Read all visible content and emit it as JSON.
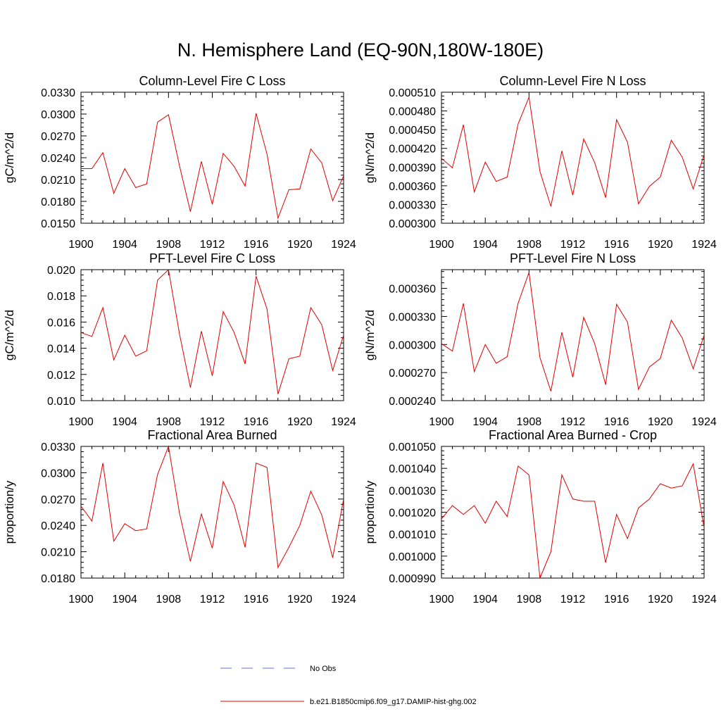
{
  "figure": {
    "title": "N. Hemisphere Land (EQ-90N,180W-180E)"
  },
  "legend": [
    {
      "label": "No Obs",
      "color": "#6670c8",
      "style": "dashed"
    },
    {
      "label": "b.e21.B1850cmip6.f09_g17.DAMIP-hist-ghg.002",
      "color": "#e00000",
      "style": "solid"
    }
  ],
  "chart_data": [
    {
      "type": "line",
      "title": "Column-Level Fire C Loss",
      "ylabel": "gC/m^2/d",
      "xlim": [
        1900,
        1924
      ],
      "ylim": [
        0.015,
        0.033
      ],
      "xticks": [
        1900,
        1904,
        1908,
        1912,
        1916,
        1920,
        1924
      ],
      "xtick_labels": [
        "1900",
        "1904",
        "1908",
        "1912",
        "1916",
        "1920",
        "1924"
      ],
      "yticks": [
        0.015,
        0.018,
        0.021,
        0.024,
        0.027,
        0.03,
        0.033
      ],
      "ytick_labels": [
        "0.0150",
        "0.0180",
        "0.0210",
        "0.0240",
        "0.0270",
        "0.0300",
        "0.0330"
      ],
      "x": [
        1900,
        1901,
        1902,
        1903,
        1904,
        1905,
        1906,
        1907,
        1908,
        1909,
        1910,
        1911,
        1912,
        1913,
        1914,
        1915,
        1916,
        1917,
        1918,
        1919,
        1920,
        1921,
        1922,
        1923,
        1924
      ],
      "series": [
        {
          "name": "b.e21.B1850cmip6.f09_g17.DAMIP-hist-ghg.002",
          "color": "#e00000",
          "values": [
            0.0225,
            0.0225,
            0.0247,
            0.0191,
            0.0225,
            0.0199,
            0.0204,
            0.0289,
            0.0299,
            0.0229,
            0.0166,
            0.0235,
            0.0176,
            0.0246,
            0.0228,
            0.0201,
            0.0301,
            0.0245,
            0.0157,
            0.0196,
            0.0197,
            0.0252,
            0.0233,
            0.0181,
            0.0215
          ]
        }
      ]
    },
    {
      "type": "line",
      "title": "Column-Level Fire N Loss",
      "ylabel": "gN/m^2/d",
      "xlim": [
        1900,
        1924
      ],
      "ylim": [
        0.0003,
        0.00051
      ],
      "xticks": [
        1900,
        1904,
        1908,
        1912,
        1916,
        1920,
        1924
      ],
      "xtick_labels": [
        "1900",
        "1904",
        "1908",
        "1912",
        "1916",
        "1920",
        "1924"
      ],
      "yticks": [
        0.0003,
        0.00033,
        0.00036,
        0.00039,
        0.00042,
        0.00045,
        0.00048,
        0.00051
      ],
      "ytick_labels": [
        "0.000300",
        "0.000330",
        "0.000360",
        "0.000390",
        "0.000420",
        "0.000450",
        "0.000480",
        "0.000510"
      ],
      "x": [
        1900,
        1901,
        1902,
        1903,
        1904,
        1905,
        1906,
        1907,
        1908,
        1909,
        1910,
        1911,
        1912,
        1913,
        1914,
        1915,
        1916,
        1917,
        1918,
        1919,
        1920,
        1921,
        1922,
        1923,
        1924
      ],
      "series": [
        {
          "name": "b.e21.B1850cmip6.f09_g17.DAMIP-hist-ghg.002",
          "color": "#e00000",
          "values": [
            0.000404,
            0.000389,
            0.000458,
            0.00035,
            0.000398,
            0.000367,
            0.000374,
            0.000459,
            0.000502,
            0.000383,
            0.000327,
            0.000416,
            0.000345,
            0.000435,
            0.000397,
            0.000341,
            0.000466,
            0.00043,
            0.000331,
            0.000359,
            0.000374,
            0.000433,
            0.000406,
            0.000355,
            0.00041
          ]
        }
      ]
    },
    {
      "type": "line",
      "title": "PFT-Level Fire C Loss",
      "ylabel": "gC/m^2/d",
      "xlim": [
        1900,
        1924
      ],
      "ylim": [
        0.01,
        0.02
      ],
      "xticks": [
        1900,
        1904,
        1908,
        1912,
        1916,
        1920,
        1924
      ],
      "xtick_labels": [
        "1900",
        "1904",
        "1908",
        "1912",
        "1916",
        "1920",
        "1924"
      ],
      "yticks": [
        0.01,
        0.012,
        0.014,
        0.016,
        0.018,
        0.02
      ],
      "ytick_labels": [
        "0.010",
        "0.012",
        "0.014",
        "0.016",
        "0.018",
        "0.020"
      ],
      "x": [
        1900,
        1901,
        1902,
        1903,
        1904,
        1905,
        1906,
        1907,
        1908,
        1909,
        1910,
        1911,
        1912,
        1913,
        1914,
        1915,
        1916,
        1917,
        1918,
        1919,
        1920,
        1921,
        1922,
        1923,
        1924
      ],
      "series": [
        {
          "name": "b.e21.B1850cmip6.f09_g17.DAMIP-hist-ghg.002",
          "color": "#e00000",
          "values": [
            0.0152,
            0.0149,
            0.0171,
            0.0131,
            0.015,
            0.0134,
            0.0138,
            0.0192,
            0.02,
            0.0151,
            0.011,
            0.0153,
            0.0119,
            0.0168,
            0.0152,
            0.0128,
            0.0195,
            0.017,
            0.0105,
            0.0132,
            0.0134,
            0.0171,
            0.0158,
            0.0123,
            0.015
          ]
        }
      ]
    },
    {
      "type": "line",
      "title": "PFT-Level Fire N Loss",
      "ylabel": "gN/m^2/d",
      "xlim": [
        1900,
        1924
      ],
      "ylim": [
        0.00024,
        0.00038
      ],
      "xticks": [
        1900,
        1904,
        1908,
        1912,
        1916,
        1920,
        1924
      ],
      "xtick_labels": [
        "1900",
        "1904",
        "1908",
        "1912",
        "1916",
        "1920",
        "1924"
      ],
      "yticks": [
        0.00024,
        0.00027,
        0.0003,
        0.00033,
        0.00036
      ],
      "ytick_labels": [
        "0.000240",
        "0.000270",
        "0.000300",
        "0.000330",
        "0.000360"
      ],
      "x": [
        1900,
        1901,
        1902,
        1903,
        1904,
        1905,
        1906,
        1907,
        1908,
        1909,
        1910,
        1911,
        1912,
        1913,
        1914,
        1915,
        1916,
        1917,
        1918,
        1919,
        1920,
        1921,
        1922,
        1923,
        1924
      ],
      "series": [
        {
          "name": "b.e21.B1850cmip6.f09_g17.DAMIP-hist-ghg.002",
          "color": "#e00000",
          "values": [
            0.000301,
            0.000293,
            0.000344,
            0.000271,
            0.0003,
            0.00028,
            0.000287,
            0.000344,
            0.000377,
            0.000286,
            0.00025,
            0.000313,
            0.000265,
            0.000329,
            0.000301,
            0.000257,
            0.000343,
            0.000324,
            0.000252,
            0.000276,
            0.000285,
            0.000326,
            0.000307,
            0.000274,
            0.00031
          ]
        }
      ]
    },
    {
      "type": "line",
      "title": "Fractional Area Burned",
      "ylabel": "proportion/y",
      "xlim": [
        1900,
        1924
      ],
      "ylim": [
        0.018,
        0.033
      ],
      "xticks": [
        1900,
        1904,
        1908,
        1912,
        1916,
        1920,
        1924
      ],
      "xtick_labels": [
        "1900",
        "1904",
        "1908",
        "1912",
        "1916",
        "1920",
        "1924"
      ],
      "yticks": [
        0.018,
        0.021,
        0.024,
        0.027,
        0.03,
        0.033
      ],
      "ytick_labels": [
        "0.0180",
        "0.0210",
        "0.0240",
        "0.0270",
        "0.0300",
        "0.0330"
      ],
      "x": [
        1900,
        1901,
        1902,
        1903,
        1904,
        1905,
        1906,
        1907,
        1908,
        1909,
        1910,
        1911,
        1912,
        1913,
        1914,
        1915,
        1916,
        1917,
        1918,
        1919,
        1920,
        1921,
        1922,
        1923,
        1924
      ],
      "series": [
        {
          "name": "b.e21.B1850cmip6.f09_g17.DAMIP-hist-ghg.002",
          "color": "#e00000",
          "values": [
            0.0262,
            0.0245,
            0.0311,
            0.0222,
            0.0242,
            0.0234,
            0.0236,
            0.0298,
            0.033,
            0.0254,
            0.0199,
            0.0253,
            0.0214,
            0.029,
            0.0263,
            0.0215,
            0.0311,
            0.0306,
            0.0192,
            0.0215,
            0.024,
            0.0279,
            0.0252,
            0.0203,
            0.027
          ]
        }
      ]
    },
    {
      "type": "line",
      "title": "Fractional Area Burned - Crop",
      "ylabel": "proportion/y",
      "xlim": [
        1900,
        1924
      ],
      "ylim": [
        0.00099,
        0.00105
      ],
      "xticks": [
        1900,
        1904,
        1908,
        1912,
        1916,
        1920,
        1924
      ],
      "xtick_labels": [
        "1900",
        "1904",
        "1908",
        "1912",
        "1916",
        "1920",
        "1924"
      ],
      "yticks": [
        0.00099,
        0.001,
        0.00101,
        0.00102,
        0.00103,
        0.00104,
        0.00105
      ],
      "ytick_labels": [
        "0.000990",
        "0.001000",
        "0.001010",
        "0.001020",
        "0.001030",
        "0.001040",
        "0.001050"
      ],
      "x": [
        1900,
        1901,
        1902,
        1903,
        1904,
        1905,
        1906,
        1907,
        1908,
        1909,
        1910,
        1911,
        1912,
        1913,
        1914,
        1915,
        1916,
        1917,
        1918,
        1919,
        1920,
        1921,
        1922,
        1923,
        1924
      ],
      "series": [
        {
          "name": "b.e21.B1850cmip6.f09_g17.DAMIP-hist-ghg.002",
          "color": "#e00000",
          "values": [
            0.001017,
            0.001023,
            0.001019,
            0.001023,
            0.001015,
            0.001025,
            0.001018,
            0.001041,
            0.001037,
            0.00099,
            0.001002,
            0.001037,
            0.001026,
            0.001025,
            0.001025,
            0.000997,
            0.001019,
            0.001008,
            0.001022,
            0.001026,
            0.001033,
            0.001031,
            0.001032,
            0.001042,
            0.001013
          ]
        }
      ]
    }
  ]
}
